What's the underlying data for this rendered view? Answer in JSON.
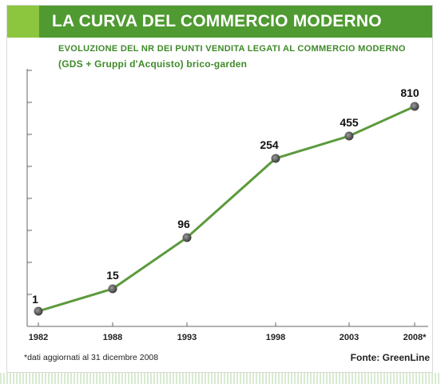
{
  "header": {
    "title": "LA CURVA DEL COMMERCIO MODERNO",
    "subtitle_line1": "EVOLUZIONE DEL NR DEI PUNTI VENDITA LEGATI AL COMMERCIO MODERNO",
    "subtitle_line2": "(GDS + Gruppi d'Acquisto) brico-garden"
  },
  "footer": {
    "footnote": "*dati aggiornati al 31 dicembre 2008",
    "source": "Fonte: GreenLine"
  },
  "colors": {
    "header_bg": "#4f9a31",
    "accent_light": "#8cc63f",
    "line": "#5b9a3c",
    "subtitle": "#3f8a2a"
  },
  "chart_data": {
    "type": "line",
    "categories": [
      "1982",
      "1988",
      "1993",
      "1998",
      "2003",
      "2008*"
    ],
    "values": [
      1,
      15,
      96,
      254,
      455,
      810
    ],
    "data_labels": [
      "1",
      "15",
      "96",
      "254",
      "455",
      "810"
    ],
    "grid": false
  }
}
